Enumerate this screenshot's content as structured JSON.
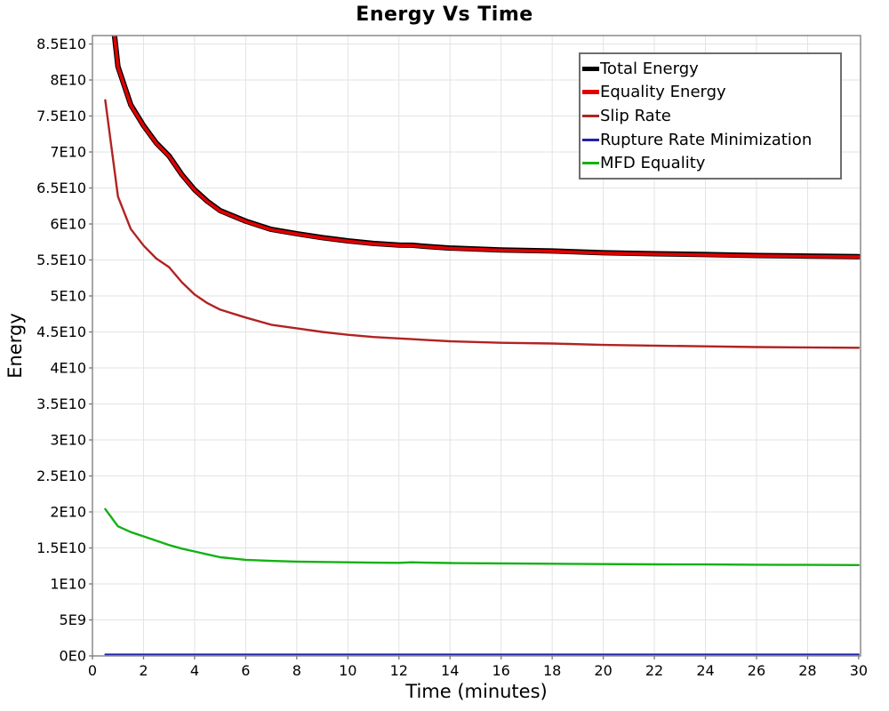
{
  "title": "Energy Vs Time",
  "x_axis": {
    "label": "Time (minutes)"
  },
  "y_axis": {
    "label": "Energy"
  },
  "legend": {
    "items": [
      {
        "label": "Total Energy",
        "color": "#000000",
        "weight": 5
      },
      {
        "label": "Equality Energy",
        "color": "#e10000",
        "weight": 5
      },
      {
        "label": "Slip Rate",
        "color": "#b22222",
        "weight": 3
      },
      {
        "label": "Rupture Rate Minimization",
        "color": "#2222aa",
        "weight": 3
      },
      {
        "label": "MFD Equality",
        "color": "#12b212",
        "weight": 3
      }
    ]
  },
  "chart_data": {
    "type": "line",
    "title": "Energy Vs Time",
    "xlabel": "Time (minutes)",
    "ylabel": "Energy",
    "xlim": [
      0,
      30
    ],
    "ylim": [
      0,
      86200000000.0
    ],
    "grid": true,
    "legend_position": "top-right",
    "x_ticks": [
      0,
      2,
      4,
      6,
      8,
      10,
      12,
      14,
      16,
      18,
      20,
      22,
      24,
      26,
      28,
      30
    ],
    "y_ticks": [
      {
        "value": 0,
        "label": "0E0"
      },
      {
        "value": 5000000000.0,
        "label": "5E9"
      },
      {
        "value": 10000000000.0,
        "label": "1E10"
      },
      {
        "value": 15000000000.0,
        "label": "1.5E10"
      },
      {
        "value": 20000000000.0,
        "label": "2E10"
      },
      {
        "value": 25000000000.0,
        "label": "2.5E10"
      },
      {
        "value": 30000000000.0,
        "label": "3E10"
      },
      {
        "value": 35000000000.0,
        "label": "3.5E10"
      },
      {
        "value": 40000000000.0,
        "label": "4E10"
      },
      {
        "value": 45000000000.0,
        "label": "4.5E10"
      },
      {
        "value": 50000000000.0,
        "label": "5E10"
      },
      {
        "value": 55000000000.0,
        "label": "5.5E10"
      },
      {
        "value": 60000000000.0,
        "label": "6E10"
      },
      {
        "value": 65000000000.0,
        "label": "6.5E10"
      },
      {
        "value": 70000000000.0,
        "label": "7E10"
      },
      {
        "value": 75000000000.0,
        "label": "7.5E10"
      },
      {
        "value": 80000000000.0,
        "label": "8E10"
      },
      {
        "value": 85000000000.0,
        "label": "8.5E10"
      }
    ],
    "x": [
      0.5,
      1,
      1.5,
      2,
      2.5,
      3,
      3.5,
      4,
      4.5,
      5,
      6,
      7,
      8,
      9,
      10,
      11,
      12,
      12.5,
      13,
      14,
      16,
      18,
      20,
      22,
      24,
      26,
      28,
      30
    ],
    "series": [
      {
        "name": "Total Energy",
        "color": "#000000",
        "stroke_width": 6,
        "values": [
          97650000000.0,
          81850000000.0,
          76550000000.0,
          73650000000.0,
          71250000000.0,
          69450000000.0,
          66850000000.0,
          64750000000.0,
          63150000000.0,
          61850000000.0,
          60400000000.0,
          59250000000.0,
          58650000000.0,
          58100000000.0,
          57650000000.0,
          57300000000.0,
          57080000000.0,
          57050000000.0,
          56900000000.0,
          56650000000.0,
          56400000000.0,
          56250000000.0,
          56000000000.0,
          55870000000.0,
          55750000000.0,
          55620000000.0,
          55540000000.0,
          55470000000.0
        ]
      },
      {
        "name": "Equality Energy",
        "color": "#e10000",
        "stroke_width": 3.6,
        "values": [
          97600000000.0,
          81800000000.0,
          76500000000.0,
          73600000000.0,
          71200000000.0,
          69400000000.0,
          66800000000.0,
          64700000000.0,
          63100000000.0,
          61800000000.0,
          60350000000.0,
          59200000000.0,
          58600000000.0,
          58050000000.0,
          57600000000.0,
          57250000000.0,
          57030000000.0,
          57000000000.0,
          56850000000.0,
          56600000000.0,
          56350000000.0,
          56200000000.0,
          55950000000.0,
          55820000000.0,
          55700000000.0,
          55570000000.0,
          55490000000.0,
          55420000000.0
        ]
      },
      {
        "name": "Slip Rate",
        "color": "#b22222",
        "stroke_width": 2.4,
        "values": [
          77200000000.0,
          63800000000.0,
          59300000000.0,
          57000000000.0,
          55200000000.0,
          54000000000.0,
          51900000000.0,
          50200000000.0,
          49000000000.0,
          48100000000.0,
          47000000000.0,
          46000000000.0,
          45500000000.0,
          45000000000.0,
          44600000000.0,
          44300000000.0,
          44100000000.0,
          44000000000.0,
          43900000000.0,
          43700000000.0,
          43500000000.0,
          43400000000.0,
          43200000000.0,
          43100000000.0,
          43000000000.0,
          42900000000.0,
          42850000000.0,
          42800000000.0
        ]
      },
      {
        "name": "Rupture Rate Minimization",
        "color": "#2222aa",
        "stroke_width": 2,
        "values": [
          200000000.0,
          200000000.0,
          200000000.0,
          200000000.0,
          200000000.0,
          200000000.0,
          200000000.0,
          200000000.0,
          200000000.0,
          200000000.0,
          200000000.0,
          200000000.0,
          200000000.0,
          200000000.0,
          200000000.0,
          200000000.0,
          200000000.0,
          200000000.0,
          200000000.0,
          200000000.0,
          200000000.0,
          200000000.0,
          200000000.0,
          200000000.0,
          200000000.0,
          200000000.0,
          200000000.0,
          200000000.0
        ]
      },
      {
        "name": "MFD Equality",
        "color": "#12b212",
        "stroke_width": 2.4,
        "values": [
          20400000000.0,
          18000000000.0,
          17200000000.0,
          16600000000.0,
          16000000000.0,
          15400000000.0,
          14900000000.0,
          14500000000.0,
          14100000000.0,
          13700000000.0,
          13350000000.0,
          13200000000.0,
          13100000000.0,
          13050000000.0,
          13000000000.0,
          12950000000.0,
          12930000000.0,
          13000000000.0,
          12950000000.0,
          12900000000.0,
          12850000000.0,
          12800000000.0,
          12750000000.0,
          12720000000.0,
          12700000000.0,
          12670000000.0,
          12640000000.0,
          12620000000.0
        ]
      }
    ]
  }
}
